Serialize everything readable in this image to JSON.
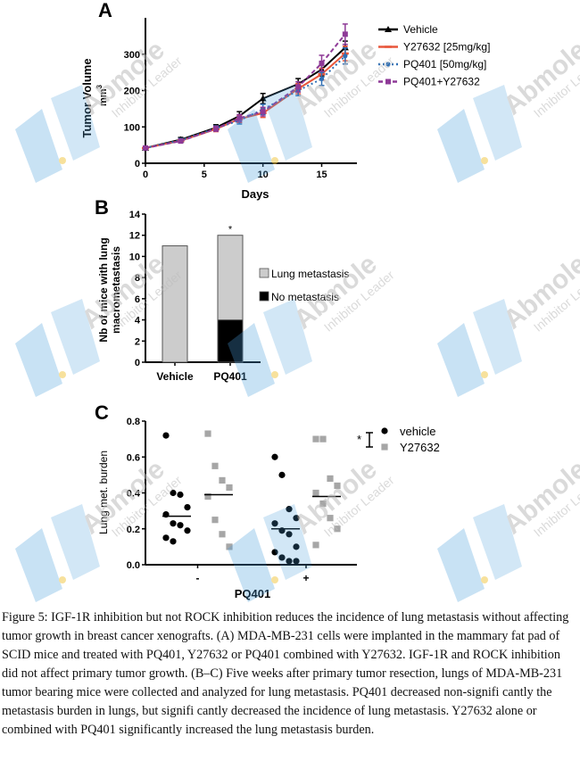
{
  "colors": {
    "vehicle": "#000000",
    "y27632": "#e8573c",
    "pq401": "#2f6fb5",
    "combo": "#8e3a97",
    "bar_lung": "#cccccc",
    "bar_no": "#000000",
    "dot_vehicle": "#000000",
    "dot_y27632": "#a6a6a6",
    "watermark_blue": "#4a9fdc",
    "watermark_text": "#bdbdbd"
  },
  "watermark": {
    "brand": "Abmole",
    "tagline": "Inhibitor Leader"
  },
  "chart_data": [
    {
      "panel": "A",
      "type": "line",
      "xlabel": "Days",
      "ylabel": "Tumor Volume",
      "ylabel_unit": "mm",
      "ylabel_unit_sup": "3",
      "xlim": [
        0,
        18
      ],
      "ylim": [
        0,
        400
      ],
      "xticks": [
        0,
        5,
        10,
        15
      ],
      "yticks": [
        0,
        100,
        200,
        300
      ],
      "series": [
        {
          "name": "Vehicle",
          "key": "vehicle",
          "marker": "triangle",
          "x": [
            0,
            3,
            6,
            8,
            10,
            13,
            15,
            17
          ],
          "y": [
            42,
            65,
            98,
            130,
            178,
            218,
            258,
            318
          ],
          "err": [
            4,
            6,
            8,
            12,
            14,
            15,
            18,
            18
          ]
        },
        {
          "name": "Y27632 [25mg/kg]",
          "key": "y27632",
          "marker": "tick",
          "x": [
            0,
            3,
            6,
            8,
            10,
            13,
            15,
            17
          ],
          "y": [
            42,
            62,
            94,
            122,
            138,
            205,
            245,
            302
          ],
          "err": [
            4,
            5,
            7,
            10,
            12,
            14,
            16,
            20
          ]
        },
        {
          "name": "PQ401 [50mg/kg]",
          "key": "pq401",
          "marker": "circle",
          "x": [
            0,
            3,
            6,
            8,
            10,
            13,
            15,
            17
          ],
          "y": [
            42,
            63,
            96,
            118,
            148,
            200,
            232,
            295
          ],
          "err": [
            4,
            5,
            7,
            10,
            14,
            14,
            18,
            22
          ]
        },
        {
          "name": "PQ401+Y27632",
          "key": "combo",
          "marker": "square",
          "x": [
            0,
            3,
            6,
            8,
            10,
            13,
            15,
            17
          ],
          "y": [
            42,
            61,
            95,
            124,
            142,
            210,
            275,
            355
          ],
          "err": [
            4,
            5,
            7,
            10,
            12,
            14,
            22,
            28
          ]
        }
      ]
    },
    {
      "panel": "B",
      "type": "bar",
      "ylabel_line1": "Nb of mice with lung",
      "ylabel_line2": "macrometastasis",
      "categories": [
        "Vehicle",
        "PQ401"
      ],
      "series": [
        {
          "name": "Lung metastasis",
          "key": "bar_lung",
          "values": [
            11,
            8
          ]
        },
        {
          "name": "No metastasis",
          "key": "bar_no",
          "values": [
            0,
            4
          ]
        }
      ],
      "ylim": [
        0,
        14
      ],
      "yticks": [
        0,
        2,
        4,
        6,
        8,
        10,
        12,
        14
      ],
      "annotation": "*"
    },
    {
      "panel": "C",
      "type": "scatter",
      "ylabel": "Lung met. burden",
      "xlabel": "PQ401",
      "group_labels": [
        "-",
        "+"
      ],
      "ylim": [
        0,
        0.8
      ],
      "yticks": [
        "0.0",
        "0.2",
        "0.4",
        "0.6",
        "0.8"
      ],
      "groups": [
        {
          "series": "vehicle",
          "pq401": "-",
          "mean": 0.27,
          "values": [
            0.72,
            0.4,
            0.39,
            0.32,
            0.28,
            0.23,
            0.22,
            0.19,
            0.15,
            0.13
          ]
        },
        {
          "series": "Y27632",
          "pq401": "-",
          "mean": 0.39,
          "values": [
            0.73,
            0.55,
            0.47,
            0.43,
            0.38,
            0.25,
            0.17,
            0.1
          ]
        },
        {
          "series": "vehicle",
          "pq401": "+",
          "mean": 0.2,
          "values": [
            0.6,
            0.5,
            0.31,
            0.26,
            0.23,
            0.19,
            0.17,
            0.1,
            0.07,
            0.04,
            0.02,
            0.02
          ]
        },
        {
          "series": "Y27632",
          "pq401": "+",
          "mean": 0.38,
          "values": [
            0.7,
            0.7,
            0.48,
            0.44,
            0.4,
            0.34,
            0.26,
            0.2,
            0.11
          ]
        }
      ],
      "legend": [
        {
          "name": "vehicle",
          "marker": "circle",
          "key": "dot_vehicle"
        },
        {
          "name": "Y27632",
          "marker": "square",
          "key": "dot_y27632"
        }
      ],
      "annotation": "*"
    }
  ],
  "caption": "Figure 5: IGF-1R inhibition but not ROCK inhibition reduces the incidence of lung metastasis without affecting tumor growth in breast cancer xenografts. (A) MDA-MB-231 cells were implanted in the mammary fat pad of SCID mice and treated with PQ401, Y27632 or PQ401 combined with Y27632. IGF-1R and ROCK inhibition did not affect primary tumor growth. (B–C) Five weeks after primary tumor resection, lungs of MDA-MB-231 tumor bearing mice were collected and analyzed for lung metastasis. PQ401 decreased non-signifi cantly the metastasis burden in lungs, but signifi cantly decreased the incidence of lung metastasis. Y27632 alone or combined with PQ401 significantly increased the lung metastasis burden."
}
